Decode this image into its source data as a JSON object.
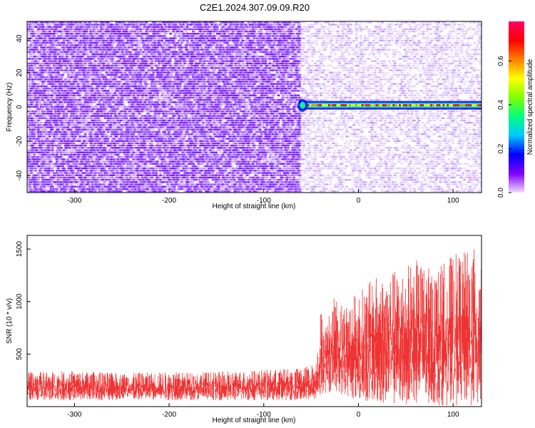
{
  "title": "C2E1.2024.307.09.09.R20",
  "colors": {
    "snr_line": "#ee3333",
    "spectrogram_noise": "#7f1fff",
    "signal_core": "#ff0000"
  },
  "chart_data": [
    {
      "type": "heatmap",
      "title": "C2E1.2024.307.09.09.R20",
      "xlabel": "Height of straight line (km)",
      "ylabel": "Frequency (Hz)",
      "xlim": [
        -350,
        130
      ],
      "ylim": [
        -50,
        50
      ],
      "x_ticks": [
        -300,
        -200,
        -100,
        0,
        100
      ],
      "y_ticks": [
        -40,
        -20,
        0,
        20,
        40
      ],
      "x_tick_labels": [
        "-300",
        "-200",
        "-100",
        "0",
        "100"
      ],
      "y_tick_labels": [
        "-40",
        "-20",
        "0",
        "20",
        "40"
      ],
      "signal_onset_km": -62,
      "signal_frequency_hz": 1,
      "colorbar": {
        "label": "Normalized spectral amplitude",
        "range": [
          0.0,
          0.78
        ],
        "ticks": [
          0.0,
          0.2,
          0.4,
          0.6
        ],
        "tick_labels": [
          "0.0",
          "0.2",
          "0.4",
          "0.6"
        ],
        "stops": [
          "#f0dcff",
          "#7f00ff",
          "#0000ff",
          "#00c8ff",
          "#00ff80",
          "#80ff00",
          "#ffff00",
          "#ff8000",
          "#ff0000",
          "#ff0064"
        ]
      }
    },
    {
      "type": "line",
      "xlabel": "Height of straight line (km)",
      "ylabel": "SNR (10 * v/v)",
      "xlim": [
        -350,
        130
      ],
      "ylim": [
        0,
        1630
      ],
      "x_ticks": [
        -300,
        -200,
        -100,
        0,
        100
      ],
      "y_ticks": [
        500,
        1000,
        1500
      ],
      "x_tick_labels": [
        "-300",
        "-200",
        "-100",
        "0",
        "100"
      ],
      "y_tick_labels": [
        "500",
        "1000",
        "1500"
      ],
      "series": [
        {
          "x": [
            -350,
            -300,
            -250,
            -200,
            -150,
            -100,
            -60,
            -45,
            -40,
            -35,
            -25,
            -15,
            0,
            20,
            40,
            60,
            80,
            100,
            130
          ],
          "upper": [
            330,
            340,
            320,
            330,
            330,
            350,
            370,
            420,
            950,
            780,
            1050,
            1000,
            1100,
            1250,
            1300,
            1400,
            1300,
            1450,
            1530
          ],
          "lower": [
            60,
            60,
            60,
            60,
            60,
            60,
            60,
            60,
            80,
            120,
            150,
            100,
            50,
            30,
            20,
            20,
            10,
            10,
            10
          ]
        }
      ]
    }
  ]
}
